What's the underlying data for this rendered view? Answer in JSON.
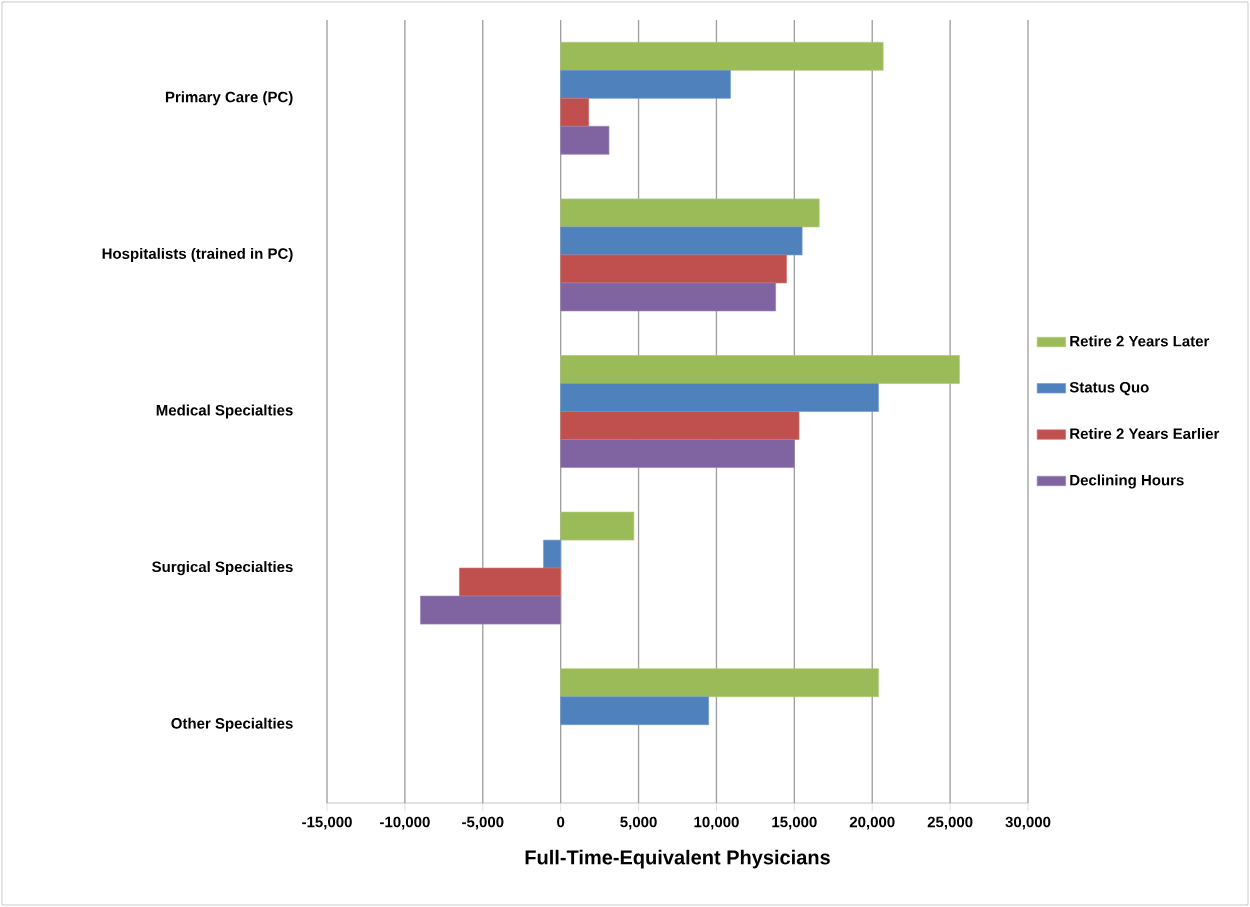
{
  "chart_data": {
    "type": "bar",
    "orientation": "horizontal",
    "xlabel": "Full-Time-Equivalent Physicians",
    "categories": [
      "Primary Care (PC)",
      "Hospitalists (trained in PC)",
      "Medical Specialties",
      "Surgical Specialties",
      "Other Specialties"
    ],
    "series": [
      {
        "name": "Retire 2 Years Later",
        "color": "#9bbb59",
        "values": [
          20700,
          16600,
          25600,
          4700,
          20400
        ]
      },
      {
        "name": "Status Quo",
        "color": "#4f81bd",
        "values": [
          10900,
          15500,
          20400,
          -1100,
          9500
        ]
      },
      {
        "name": "Retire 2 Years Earlier",
        "color": "#c0504d",
        "values": [
          1800,
          14500,
          15300,
          -6500,
          null
        ]
      },
      {
        "name": "Declining Hours",
        "color": "#8064a2",
        "values": [
          3100,
          13800,
          15000,
          -9000,
          null
        ]
      }
    ],
    "xlim": [
      -15000,
      30000
    ],
    "xticks": [
      {
        "value": -15000,
        "label": "-15,000"
      },
      {
        "value": -10000,
        "label": "-10,000"
      },
      {
        "value": -5000,
        "label": "-5,000"
      },
      0,
      {
        "value": 5000,
        "label": "5,000"
      },
      {
        "value": 10000,
        "label": "10,000"
      },
      {
        "value": 15000,
        "label": "15,000"
      },
      {
        "value": 20000,
        "label": "20,000"
      },
      {
        "value": 25000,
        "label": "25,000"
      },
      {
        "value": 30000,
        "label": "30,000"
      }
    ],
    "grid": "x",
    "legend": "right"
  }
}
